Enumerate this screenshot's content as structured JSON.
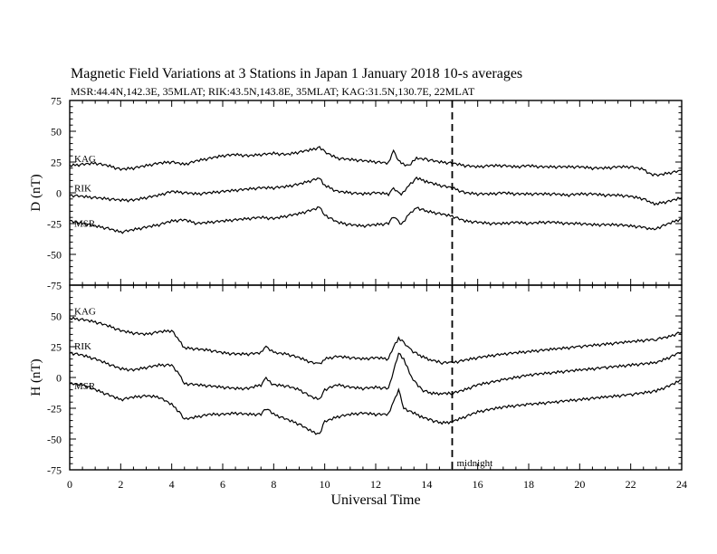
{
  "header": {
    "title": "Magnetic Field Variations at 3 Stations in Japan          1   January  2018      10-s averages",
    "subtitle": "MSR:44.4N,142.3E, 35MLAT;  RIK:43.5N,143.8E, 35MLAT;  KAG:31.5N,130.7E, 22MLAT"
  },
  "chart_data": [
    {
      "type": "line",
      "panel": "top",
      "ylabel": "D (nT)",
      "ylim": [
        -75,
        75
      ],
      "yticks": [
        "75",
        "50",
        "25",
        "0",
        "-25",
        "-50",
        "-75"
      ],
      "xlim": [
        0,
        24
      ],
      "grid": false,
      "series": [
        {
          "name": "KAG",
          "x": [
            0,
            0.5,
            1,
            1.5,
            2,
            2.5,
            3,
            3.5,
            4,
            4.5,
            5,
            5.5,
            6,
            6.5,
            7,
            7.5,
            8,
            8.5,
            9,
            9.5,
            9.8,
            10,
            10.5,
            11,
            11.5,
            12,
            12.5,
            12.7,
            12.9,
            13,
            13.3,
            13.6,
            14,
            14.5,
            15,
            15.5,
            16,
            16.5,
            17,
            17.5,
            18,
            18.5,
            19,
            19.5,
            20,
            20.5,
            21,
            21.5,
            22,
            22.5,
            22.8,
            23,
            23.5,
            24
          ],
          "y": [
            22,
            23,
            24,
            22,
            19,
            20,
            22,
            24,
            25,
            23,
            26,
            28,
            30,
            31,
            30,
            31,
            32,
            31,
            33,
            35,
            37,
            33,
            28,
            27,
            26,
            25,
            24,
            34,
            26,
            24,
            22,
            28,
            27,
            25,
            24,
            22,
            21,
            22,
            22,
            21,
            22,
            21,
            21,
            21,
            21,
            20,
            20,
            21,
            21,
            19,
            15,
            14,
            16,
            18
          ]
        },
        {
          "name": "RIK",
          "x": [
            0,
            0.5,
            1,
            1.5,
            2,
            2.5,
            3,
            3.5,
            4,
            4.5,
            5,
            5.5,
            6,
            6.5,
            7,
            7.5,
            8,
            8.5,
            9,
            9.5,
            9.8,
            10,
            10.5,
            11,
            11.5,
            12,
            12.5,
            12.7,
            12.9,
            13,
            13.3,
            13.6,
            14,
            14.5,
            15,
            15.5,
            16,
            16.5,
            17,
            17.5,
            18,
            18.5,
            19,
            19.5,
            20,
            20.5,
            21,
            21.5,
            22,
            22.5,
            22.8,
            23,
            23.5,
            24
          ],
          "y": [
            -2,
            -3,
            -4,
            -5,
            -6,
            -6,
            -4,
            -2,
            1,
            0,
            -1,
            0,
            1,
            2,
            3,
            4,
            4,
            5,
            7,
            10,
            12,
            6,
            1,
            0,
            -1,
            0,
            -1,
            3,
            0,
            -2,
            6,
            12,
            9,
            6,
            4,
            0,
            -1,
            -1,
            0,
            -1,
            -1,
            -1,
            -1,
            -2,
            -1,
            -1,
            -2,
            -2,
            -3,
            -5,
            -8,
            -9,
            -7,
            -4
          ]
        },
        {
          "name": "MSR",
          "x": [
            0,
            0.5,
            1,
            1.5,
            2,
            2.5,
            3,
            3.5,
            4,
            4.5,
            5,
            5.5,
            6,
            6.5,
            7,
            7.5,
            8,
            8.5,
            9,
            9.5,
            9.8,
            10,
            10.5,
            11,
            11.5,
            12,
            12.5,
            12.7,
            12.9,
            13,
            13.3,
            13.6,
            14,
            14.5,
            15,
            15.5,
            16,
            16.5,
            17,
            17.5,
            18,
            18.5,
            19,
            19.5,
            20,
            20.5,
            21,
            21.5,
            22,
            22.5,
            22.8,
            23,
            23.5,
            24
          ],
          "y": [
            -23,
            -25,
            -27,
            -29,
            -32,
            -30,
            -28,
            -26,
            -23,
            -22,
            -25,
            -24,
            -23,
            -22,
            -21,
            -20,
            -21,
            -19,
            -17,
            -14,
            -12,
            -18,
            -24,
            -26,
            -27,
            -26,
            -25,
            -19,
            -24,
            -26,
            -18,
            -12,
            -15,
            -17,
            -19,
            -23,
            -24,
            -25,
            -25,
            -24,
            -25,
            -24,
            -24,
            -25,
            -25,
            -26,
            -26,
            -26,
            -27,
            -28,
            -30,
            -29,
            -25,
            -21
          ]
        }
      ]
    },
    {
      "type": "line",
      "panel": "bottom",
      "ylabel": "H (nT)",
      "xlabel": "Universal Time",
      "ylim": [
        -75,
        75
      ],
      "yticks": [
        "50",
        "25",
        "0",
        "-25",
        "-50",
        "-75"
      ],
      "xlim": [
        0,
        24
      ],
      "xticks": [
        "0",
        "2",
        "4",
        "6",
        "8",
        "10",
        "12",
        "14",
        "16",
        "18",
        "20",
        "22",
        "24"
      ],
      "grid": false,
      "annotation": {
        "x": 15,
        "label": "midnight",
        "style": "dashed vertical line"
      },
      "series": [
        {
          "name": "KAG",
          "x": [
            0,
            0.5,
            1,
            1.5,
            2,
            2.5,
            3,
            3.5,
            4,
            4.3,
            4.5,
            5,
            5.5,
            6,
            6.5,
            7,
            7.5,
            7.7,
            8,
            8.5,
            9,
            9.5,
            9.8,
            10,
            10.5,
            11,
            11.5,
            12,
            12.5,
            12.7,
            12.9,
            13.1,
            13.4,
            13.8,
            14.2,
            14.6,
            15,
            15.5,
            16,
            17,
            18,
            19,
            20,
            21,
            22,
            23,
            23.5,
            24
          ],
          "y": [
            48,
            47,
            45,
            42,
            38,
            36,
            35,
            37,
            38,
            30,
            24,
            23,
            22,
            20,
            19,
            19,
            20,
            25,
            20,
            19,
            16,
            12,
            11,
            15,
            17,
            16,
            15,
            16,
            15,
            25,
            32,
            28,
            22,
            17,
            14,
            12,
            12,
            14,
            16,
            19,
            21,
            23,
            25,
            27,
            29,
            31,
            33,
            37
          ]
        },
        {
          "name": "RIK",
          "x": [
            0,
            0.5,
            1,
            1.5,
            2,
            2.5,
            3,
            3.5,
            4,
            4.3,
            4.5,
            5,
            5.5,
            6,
            6.5,
            7,
            7.5,
            7.7,
            8,
            8.5,
            9,
            9.5,
            9.8,
            10,
            10.5,
            11,
            11.5,
            12,
            12.5,
            12.7,
            12.9,
            13.1,
            13.4,
            13.8,
            14.2,
            14.6,
            15,
            15.5,
            16,
            17,
            18,
            19,
            20,
            21,
            22,
            23,
            23.5,
            24
          ],
          "y": [
            20,
            18,
            15,
            11,
            7,
            6,
            8,
            10,
            10,
            2,
            -5,
            -6,
            -7,
            -8,
            -9,
            -9,
            -6,
            -1,
            -6,
            -7,
            -10,
            -16,
            -18,
            -10,
            -6,
            -8,
            -9,
            -8,
            -9,
            5,
            20,
            15,
            0,
            -10,
            -13,
            -13,
            -13,
            -10,
            -6,
            -2,
            2,
            4,
            6,
            8,
            10,
            12,
            16,
            21
          ]
        },
        {
          "name": "MSR",
          "x": [
            0,
            0.5,
            1,
            1.5,
            2,
            2.5,
            3,
            3.5,
            4,
            4.3,
            4.5,
            5,
            5.5,
            6,
            6.5,
            7,
            7.5,
            7.7,
            8,
            8.5,
            9,
            9.5,
            9.8,
            10,
            10.5,
            11,
            11.5,
            12,
            12.5,
            12.7,
            12.9,
            13.1,
            13.4,
            13.8,
            14.2,
            14.6,
            15,
            15.5,
            16,
            17,
            18,
            19,
            20,
            21,
            22,
            23,
            23.5,
            24
          ],
          "y": [
            -5,
            -6,
            -10,
            -14,
            -18,
            -16,
            -15,
            -16,
            -22,
            -28,
            -34,
            -32,
            -30,
            -30,
            -29,
            -30,
            -30,
            -25,
            -30,
            -34,
            -38,
            -44,
            -46,
            -36,
            -32,
            -30,
            -29,
            -30,
            -30,
            -20,
            -10,
            -25,
            -28,
            -32,
            -35,
            -37,
            -36,
            -32,
            -28,
            -24,
            -22,
            -20,
            -18,
            -16,
            -14,
            -11,
            -7,
            -2
          ]
        }
      ]
    }
  ]
}
